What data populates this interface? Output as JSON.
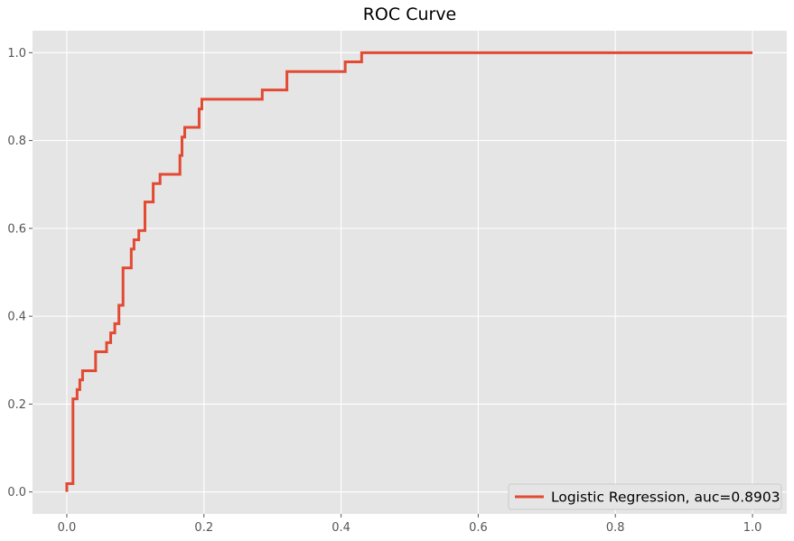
{
  "chart_data": {
    "type": "line",
    "title": "ROC Curve",
    "xlabel": "",
    "ylabel": "",
    "xlim": [
      -0.05,
      1.05
    ],
    "ylim": [
      -0.05,
      1.05
    ],
    "xticks": [
      0.0,
      0.2,
      0.4,
      0.6,
      0.8,
      1.0
    ],
    "yticks": [
      0.0,
      0.2,
      0.4,
      0.6,
      0.8,
      1.0
    ],
    "xtick_labels": [
      "0.0",
      "0.2",
      "0.4",
      "0.6",
      "0.8",
      "1.0"
    ],
    "ytick_labels": [
      "0.0",
      "0.2",
      "0.4",
      "0.6",
      "0.8",
      "1.0"
    ],
    "grid": true,
    "style": "ggplot",
    "legend_position": "bottom-right",
    "background_color": "#E5E5E5",
    "grid_color": "#FFFFFF",
    "series": [
      {
        "name": "Logistic Regression, auc=0.8903",
        "color": "#E24A33",
        "x": [
          0.0,
          0.0,
          0.009,
          0.009,
          0.015,
          0.015,
          0.019,
          0.019,
          0.023,
          0.023,
          0.042,
          0.042,
          0.058,
          0.058,
          0.064,
          0.064,
          0.07,
          0.07,
          0.076,
          0.076,
          0.082,
          0.082,
          0.094,
          0.094,
          0.098,
          0.098,
          0.105,
          0.105,
          0.114,
          0.114,
          0.126,
          0.126,
          0.136,
          0.136,
          0.165,
          0.165,
          0.168,
          0.168,
          0.172,
          0.172,
          0.193,
          0.193,
          0.197,
          0.197,
          0.285,
          0.285,
          0.321,
          0.321,
          0.406,
          0.406,
          0.43,
          0.43,
          1.0
        ],
        "y": [
          0.0,
          0.019,
          0.019,
          0.212,
          0.212,
          0.233,
          0.233,
          0.255,
          0.255,
          0.276,
          0.276,
          0.319,
          0.319,
          0.34,
          0.34,
          0.362,
          0.362,
          0.383,
          0.383,
          0.425,
          0.425,
          0.51,
          0.51,
          0.553,
          0.553,
          0.574,
          0.574,
          0.595,
          0.595,
          0.66,
          0.66,
          0.702,
          0.702,
          0.723,
          0.723,
          0.766,
          0.766,
          0.808,
          0.808,
          0.83,
          0.83,
          0.872,
          0.872,
          0.894,
          0.894,
          0.915,
          0.915,
          0.957,
          0.957,
          0.979,
          0.979,
          1.0,
          1.0
        ]
      }
    ]
  }
}
